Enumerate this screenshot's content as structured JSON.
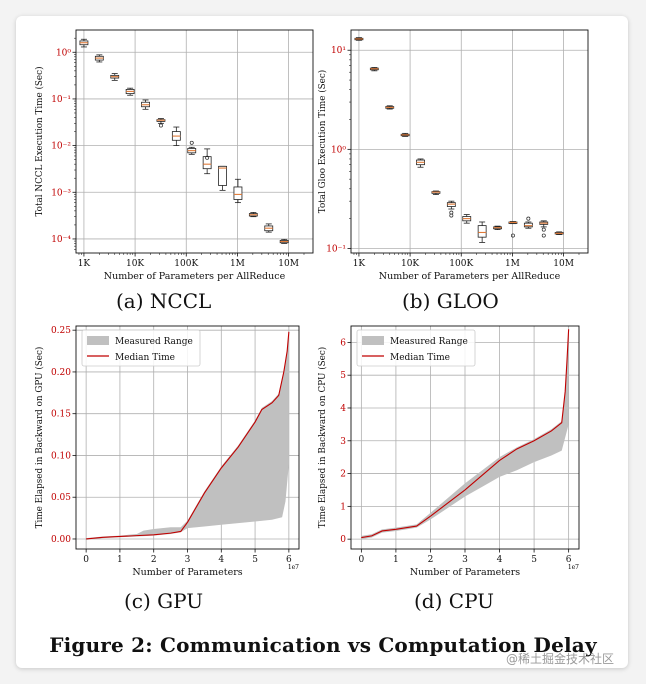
{
  "figure": {
    "title": "Figure 2: Communication vs Computation Delay"
  },
  "watermark": "@稀土掘金技术社区",
  "colors": {
    "median": "#c00000",
    "range": "#c0c0c0",
    "box_median": "#e07b39",
    "tick_red": "#c00000"
  },
  "chart_data": [
    {
      "panel": "a",
      "caption": "(a) NCCL",
      "type": "box",
      "xscale": "log",
      "yscale": "log",
      "xlabel": "Number of Parameters per AllReduce",
      "ylabel": "Total NCCL Execution Time (Sec)",
      "xlim": [
        700,
        30000000
      ],
      "ylim": [
        5e-05,
        3
      ],
      "xticks": [
        1000,
        10000,
        100000,
        1000000,
        10000000
      ],
      "xtick_labels": [
        "1K",
        "10K",
        "100K",
        "1M",
        "10M"
      ],
      "yticks": [
        0.0001,
        0.001,
        0.01,
        0.1,
        1
      ],
      "ytick_labels": [
        "10⁻⁴",
        "10⁻³",
        "10⁻²",
        "10⁻¹",
        "10⁰"
      ],
      "grid": true,
      "boxes": [
        {
          "x": 1000,
          "min": 1.3,
          "q1": 1.45,
          "med": 1.6,
          "q3": 1.75,
          "max": 1.9
        },
        {
          "x": 2000,
          "min": 0.62,
          "q1": 0.68,
          "med": 0.75,
          "q3": 0.82,
          "max": 0.88
        },
        {
          "x": 4000,
          "min": 0.25,
          "q1": 0.28,
          "med": 0.3,
          "q3": 0.32,
          "max": 0.35
        },
        {
          "x": 8000,
          "min": 0.12,
          "q1": 0.13,
          "med": 0.145,
          "q3": 0.16,
          "max": 0.17
        },
        {
          "x": 16000,
          "min": 0.06,
          "q1": 0.068,
          "med": 0.075,
          "q3": 0.085,
          "max": 0.095
        },
        {
          "x": 32000,
          "min": 0.03,
          "q1": 0.033,
          "med": 0.035,
          "q3": 0.036,
          "max": 0.038,
          "outliers": [
            0.027
          ]
        },
        {
          "x": 64000,
          "min": 0.01,
          "q1": 0.013,
          "med": 0.016,
          "q3": 0.02,
          "max": 0.025
        },
        {
          "x": 128000,
          "min": 0.0065,
          "q1": 0.007,
          "med": 0.0078,
          "q3": 0.0087,
          "max": 0.0092,
          "outliers": [
            0.0115
          ]
        },
        {
          "x": 256000,
          "min": 0.0025,
          "q1": 0.0032,
          "med": 0.004,
          "q3": 0.0058,
          "max": 0.0085,
          "outliers": [
            0.0055
          ]
        },
        {
          "x": 512000,
          "min": 0.0011,
          "q1": 0.0014,
          "med": 0.0033,
          "q3": 0.0036,
          "max": 0.0036
        },
        {
          "x": 1024000,
          "min": 0.0006,
          "q1": 0.0007,
          "med": 0.0009,
          "q3": 0.0013,
          "max": 0.0019
        },
        {
          "x": 2048000,
          "min": 0.0003,
          "q1": 0.00031,
          "med": 0.00033,
          "q3": 0.00035,
          "max": 0.00037
        },
        {
          "x": 4096000,
          "min": 0.00014,
          "q1": 0.00015,
          "med": 0.00017,
          "q3": 0.00019,
          "max": 0.00021
        },
        {
          "x": 8192000,
          "min": 8e-05,
          "q1": 8.3e-05,
          "med": 8.8e-05,
          "q3": 9.3e-05,
          "max": 9.8e-05
        }
      ]
    },
    {
      "panel": "b",
      "caption": "(b) GLOO",
      "type": "box",
      "xscale": "log",
      "yscale": "log",
      "xlabel": "Number of Parameters per AllReduce",
      "ylabel": "Total Gloo Execution Time (Sec)",
      "xlim": [
        700,
        30000000
      ],
      "ylim": [
        0.09,
        16
      ],
      "xticks": [
        1000,
        10000,
        100000,
        1000000,
        10000000
      ],
      "xtick_labels": [
        "1K",
        "10K",
        "100K",
        "1M",
        "10M"
      ],
      "yticks": [
        0.1,
        1,
        10
      ],
      "ytick_labels": [
        "10⁻¹",
        "10⁰",
        "10¹"
      ],
      "grid": true,
      "boxes": [
        {
          "x": 1000,
          "min": 12.6,
          "q1": 12.8,
          "med": 13.0,
          "q3": 13.2,
          "max": 13.4
        },
        {
          "x": 2000,
          "min": 6.2,
          "q1": 6.35,
          "med": 6.5,
          "q3": 6.6,
          "max": 6.7
        },
        {
          "x": 4000,
          "min": 2.55,
          "q1": 2.6,
          "med": 2.65,
          "q3": 2.7,
          "max": 2.75
        },
        {
          "x": 8000,
          "min": 1.35,
          "q1": 1.38,
          "med": 1.4,
          "q3": 1.42,
          "max": 1.45
        },
        {
          "x": 16000,
          "min": 0.66,
          "q1": 0.7,
          "med": 0.74,
          "q3": 0.78,
          "max": 0.8
        },
        {
          "x": 32000,
          "min": 0.35,
          "q1": 0.36,
          "med": 0.37,
          "q3": 0.375,
          "max": 0.38
        },
        {
          "x": 64000,
          "min": 0.25,
          "q1": 0.265,
          "med": 0.28,
          "q3": 0.29,
          "max": 0.3,
          "outliers": [
            0.23,
            0.215
          ]
        },
        {
          "x": 128000,
          "min": 0.18,
          "q1": 0.19,
          "med": 0.2,
          "q3": 0.21,
          "max": 0.22
        },
        {
          "x": 256000,
          "min": 0.115,
          "q1": 0.13,
          "med": 0.145,
          "q3": 0.17,
          "max": 0.185
        },
        {
          "x": 512000,
          "min": 0.155,
          "q1": 0.158,
          "med": 0.162,
          "q3": 0.165,
          "max": 0.168
        },
        {
          "x": 1024000,
          "min": 0.178,
          "q1": 0.18,
          "med": 0.183,
          "q3": 0.185,
          "max": 0.187,
          "outliers": [
            0.135
          ]
        },
        {
          "x": 2048000,
          "min": 0.16,
          "q1": 0.165,
          "med": 0.17,
          "q3": 0.18,
          "max": 0.185,
          "outliers": [
            0.2
          ]
        },
        {
          "x": 4096000,
          "min": 0.165,
          "q1": 0.175,
          "med": 0.18,
          "q3": 0.185,
          "max": 0.19,
          "outliers": [
            0.155,
            0.135
          ]
        },
        {
          "x": 8192000,
          "min": 0.138,
          "q1": 0.14,
          "med": 0.142,
          "q3": 0.145,
          "max": 0.147
        }
      ]
    },
    {
      "panel": "c",
      "caption": "(c) GPU",
      "type": "line",
      "xlabel": "Number of Parameters",
      "ylabel": "Time Elapsed in Backward on GPU (Sec)",
      "x_scale_note": "1e7",
      "xlim": [
        -0.3,
        6.3
      ],
      "ylim": [
        -0.012,
        0.255
      ],
      "xticks": [
        0,
        1,
        2,
        3,
        4,
        5,
        6
      ],
      "xtick_labels": [
        "0",
        "1",
        "2",
        "3",
        "4",
        "5",
        "6"
      ],
      "yticks": [
        0,
        0.05,
        0.1,
        0.15,
        0.2,
        0.25
      ],
      "ytick_labels": [
        "0.00",
        "0.05",
        "0.10",
        "0.15",
        "0.20",
        "0.25"
      ],
      "grid": true,
      "legend": {
        "position": "upper-left",
        "entries": [
          "Measured Range",
          "Median Time"
        ]
      },
      "series": [
        {
          "name": "Median Time",
          "x": [
            0,
            0.5,
            1,
            1.5,
            2,
            2.5,
            2.8,
            3.0,
            3.5,
            4.0,
            4.5,
            5.0,
            5.2,
            5.5,
            5.7,
            5.85,
            5.95,
            6.0
          ],
          "y": [
            0.0,
            0.002,
            0.003,
            0.004,
            0.005,
            0.007,
            0.009,
            0.02,
            0.055,
            0.085,
            0.11,
            0.14,
            0.155,
            0.163,
            0.172,
            0.2,
            0.225,
            0.248
          ]
        },
        {
          "name": "Measured Range (upper)",
          "x": [
            0,
            0.5,
            1,
            1.5,
            1.7,
            2.0,
            2.5,
            2.8,
            3.0,
            3.5,
            4.0,
            4.5,
            5.0,
            5.2,
            5.5,
            5.7,
            5.85,
            5.95,
            6.0
          ],
          "y": [
            0.001,
            0.003,
            0.004,
            0.006,
            0.01,
            0.012,
            0.014,
            0.014,
            0.022,
            0.057,
            0.087,
            0.112,
            0.142,
            0.157,
            0.165,
            0.174,
            0.202,
            0.227,
            0.25
          ]
        },
        {
          "name": "Measured Range (lower)",
          "x": [
            0,
            0.5,
            1,
            1.5,
            2,
            2.5,
            2.8,
            3.0,
            3.5,
            4.0,
            4.5,
            5.0,
            5.5,
            5.8,
            5.9,
            6.0
          ],
          "y": [
            -0.001,
            0.001,
            0.002,
            0.003,
            0.004,
            0.006,
            0.008,
            0.013,
            0.015,
            0.017,
            0.019,
            0.021,
            0.023,
            0.026,
            0.045,
            0.09
          ]
        }
      ]
    },
    {
      "panel": "d",
      "caption": "(d) CPU",
      "type": "line",
      "xlabel": "Number of Parameters",
      "ylabel": "Time Elapsed in Backward on CPU (Sec)",
      "x_scale_note": "1e7",
      "xlim": [
        -0.3,
        6.3
      ],
      "ylim": [
        -0.3,
        6.5
      ],
      "xticks": [
        0,
        1,
        2,
        3,
        4,
        5,
        6
      ],
      "xtick_labels": [
        "0",
        "1",
        "2",
        "3",
        "4",
        "5",
        "6"
      ],
      "yticks": [
        0,
        1,
        2,
        3,
        4,
        5,
        6
      ],
      "ytick_labels": [
        "0",
        "1",
        "2",
        "3",
        "4",
        "5",
        "6"
      ],
      "grid": true,
      "legend": {
        "position": "upper-left",
        "entries": [
          "Measured Range",
          "Median Time"
        ]
      },
      "series": [
        {
          "name": "Median Time",
          "x": [
            0,
            0.3,
            0.6,
            1.0,
            1.3,
            1.6,
            2.0,
            2.5,
            3.0,
            3.5,
            4.0,
            4.5,
            5.0,
            5.5,
            5.8,
            5.9,
            5.95,
            6.0
          ],
          "y": [
            0.05,
            0.1,
            0.25,
            0.3,
            0.35,
            0.4,
            0.7,
            1.1,
            1.5,
            1.95,
            2.4,
            2.75,
            3.0,
            3.3,
            3.55,
            4.5,
            5.4,
            6.4
          ]
        },
        {
          "name": "Measured Range (upper)",
          "x": [
            0,
            0.3,
            0.6,
            1.0,
            1.3,
            1.6,
            2.0,
            2.5,
            3.0,
            3.5,
            4.0,
            4.5,
            5.0,
            5.5,
            5.8,
            5.9,
            5.95,
            6.0
          ],
          "y": [
            0.1,
            0.15,
            0.3,
            0.35,
            0.4,
            0.45,
            0.8,
            1.25,
            1.7,
            2.1,
            2.5,
            2.8,
            3.05,
            3.35,
            3.6,
            4.55,
            5.45,
            6.45
          ]
        },
        {
          "name": "Measured Range (lower)",
          "x": [
            0,
            0.3,
            0.6,
            1.0,
            1.3,
            1.6,
            2.0,
            2.5,
            3.0,
            3.5,
            4.0,
            4.5,
            5.0,
            5.5,
            5.8,
            5.9,
            6.0
          ],
          "y": [
            0.0,
            0.05,
            0.2,
            0.25,
            0.3,
            0.35,
            0.6,
            0.95,
            1.3,
            1.6,
            1.9,
            2.1,
            2.35,
            2.55,
            2.7,
            3.1,
            3.5
          ]
        }
      ]
    }
  ]
}
